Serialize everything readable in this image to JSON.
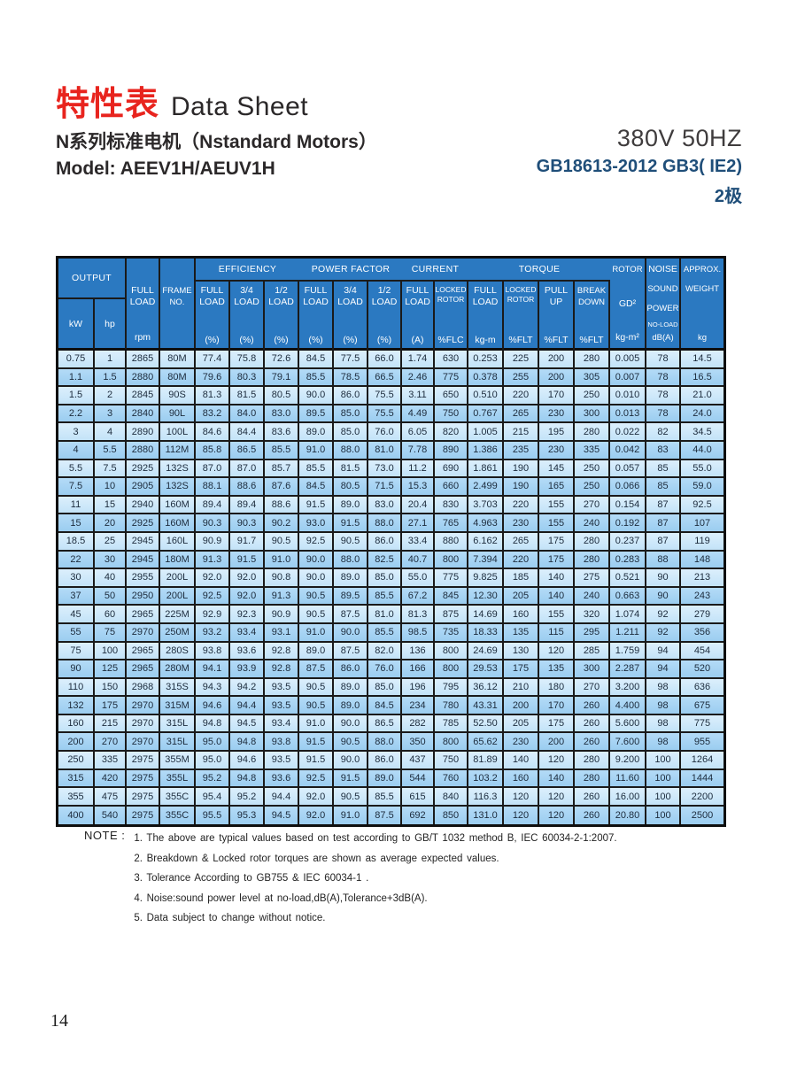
{
  "header": {
    "title_cn": "特性表",
    "title_en": "Data Sheet",
    "subtitle": "N系列标准电机（Nstandard Motors）",
    "model": "Model: AEEV1H/AEUV1H",
    "voltage": "380V 50HZ",
    "standard": "GB18613-2012 GB3( IE2)",
    "poles": "2极"
  },
  "colors": {
    "title_red": "#e8241e",
    "standard_navy": "#1f4e79",
    "table_header_blue": "#2b79c1",
    "row_light_blue": "#cfe8fa",
    "row_medium_blue": "#a8d4f3"
  },
  "table": {
    "head": {
      "output": "OUTPUT",
      "kw": "kW",
      "hp": "hp",
      "full": "FULL",
      "load": "LOAD",
      "rpm": "rpm",
      "frame1": "FRAME",
      "frame2": "NO.",
      "efficiency": "EFFICIENCY",
      "power_factor": "POWER FACTOR",
      "current": "CURRENT",
      "torque": "TORQUE",
      "three_quarters": "3/4",
      "one_half": "1/2",
      "pct": "(%)",
      "amps": "(A)",
      "locked": "LOCKED",
      "rotor": "ROTOR",
      "flc": "%FLC",
      "flt": "%FLT",
      "kgm": "kg-m",
      "pull": "PULL",
      "up": "UP",
      "brk": "BREAK",
      "down": "DOWN",
      "gd2": "GD²",
      "kgm2": "kg-m²",
      "noise": "NOISE",
      "sound": "SOUND",
      "power": "POWER",
      "noload": "NO-LOAD",
      "dba": "dB(A)",
      "approx": "APPROX.",
      "weight": "WEIGHT",
      "kg": "kg"
    },
    "rows": [
      [
        "0.75",
        "1",
        "2865",
        "80M",
        "77.4",
        "75.8",
        "72.6",
        "84.5",
        "77.5",
        "66.0",
        "1.74",
        "630",
        "0.253",
        "225",
        "200",
        "280",
        "0.005",
        "78",
        "14.5"
      ],
      [
        "1.1",
        "1.5",
        "2880",
        "80M",
        "79.6",
        "80.3",
        "79.1",
        "85.5",
        "78.5",
        "66.5",
        "2.46",
        "775",
        "0.378",
        "255",
        "200",
        "305",
        "0.007",
        "78",
        "16.5"
      ],
      [
        "1.5",
        "2",
        "2845",
        "90S",
        "81.3",
        "81.5",
        "80.5",
        "90.0",
        "86.0",
        "75.5",
        "3.11",
        "650",
        "0.510",
        "220",
        "170",
        "250",
        "0.010",
        "78",
        "21.0"
      ],
      [
        "2.2",
        "3",
        "2840",
        "90L",
        "83.2",
        "84.0",
        "83.0",
        "89.5",
        "85.0",
        "75.5",
        "4.49",
        "750",
        "0.767",
        "265",
        "230",
        "300",
        "0.013",
        "78",
        "24.0"
      ],
      [
        "3",
        "4",
        "2890",
        "100L",
        "84.6",
        "84.4",
        "83.6",
        "89.0",
        "85.0",
        "76.0",
        "6.05",
        "820",
        "1.005",
        "215",
        "195",
        "280",
        "0.022",
        "82",
        "34.5"
      ],
      [
        "4",
        "5.5",
        "2880",
        "112M",
        "85.8",
        "86.5",
        "85.5",
        "91.0",
        "88.0",
        "81.0",
        "7.78",
        "890",
        "1.386",
        "235",
        "230",
        "335",
        "0.042",
        "83",
        "44.0"
      ],
      [
        "5.5",
        "7.5",
        "2925",
        "132S",
        "87.0",
        "87.0",
        "85.7",
        "85.5",
        "81.5",
        "73.0",
        "11.2",
        "690",
        "1.861",
        "190",
        "145",
        "250",
        "0.057",
        "85",
        "55.0"
      ],
      [
        "7.5",
        "10",
        "2905",
        "132S",
        "88.1",
        "88.6",
        "87.6",
        "84.5",
        "80.5",
        "71.5",
        "15.3",
        "660",
        "2.499",
        "190",
        "165",
        "250",
        "0.066",
        "85",
        "59.0"
      ],
      [
        "11",
        "15",
        "2940",
        "160M",
        "89.4",
        "89.4",
        "88.6",
        "91.5",
        "89.0",
        "83.0",
        "20.4",
        "830",
        "3.703",
        "220",
        "155",
        "270",
        "0.154",
        "87",
        "92.5"
      ],
      [
        "15",
        "20",
        "2925",
        "160M",
        "90.3",
        "90.3",
        "90.2",
        "93.0",
        "91.5",
        "88.0",
        "27.1",
        "765",
        "4.963",
        "230",
        "155",
        "240",
        "0.192",
        "87",
        "107"
      ],
      [
        "18.5",
        "25",
        "2945",
        "160L",
        "90.9",
        "91.7",
        "90.5",
        "92.5",
        "90.5",
        "86.0",
        "33.4",
        "880",
        "6.162",
        "265",
        "175",
        "280",
        "0.237",
        "87",
        "119"
      ],
      [
        "22",
        "30",
        "2945",
        "180M",
        "91.3",
        "91.5",
        "91.0",
        "90.0",
        "88.0",
        "82.5",
        "40.7",
        "800",
        "7.394",
        "220",
        "175",
        "280",
        "0.283",
        "88",
        "148"
      ],
      [
        "30",
        "40",
        "2955",
        "200L",
        "92.0",
        "92.0",
        "90.8",
        "90.0",
        "89.0",
        "85.0",
        "55.0",
        "775",
        "9.825",
        "185",
        "140",
        "275",
        "0.521",
        "90",
        "213"
      ],
      [
        "37",
        "50",
        "2950",
        "200L",
        "92.5",
        "92.0",
        "91.3",
        "90.5",
        "89.5",
        "85.5",
        "67.2",
        "845",
        "12.30",
        "205",
        "140",
        "240",
        "0.663",
        "90",
        "243"
      ],
      [
        "45",
        "60",
        "2965",
        "225M",
        "92.9",
        "92.3",
        "90.9",
        "90.5",
        "87.5",
        "81.0",
        "81.3",
        "875",
        "14.69",
        "160",
        "155",
        "320",
        "1.074",
        "92",
        "279"
      ],
      [
        "55",
        "75",
        "2970",
        "250M",
        "93.2",
        "93.4",
        "93.1",
        "91.0",
        "90.0",
        "85.5",
        "98.5",
        "735",
        "18.33",
        "135",
        "115",
        "295",
        "1.211",
        "92",
        "356"
      ],
      [
        "75",
        "100",
        "2965",
        "280S",
        "93.8",
        "93.6",
        "92.8",
        "89.0",
        "87.5",
        "82.0",
        "136",
        "800",
        "24.69",
        "130",
        "120",
        "285",
        "1.759",
        "94",
        "454"
      ],
      [
        "90",
        "125",
        "2965",
        "280M",
        "94.1",
        "93.9",
        "92.8",
        "87.5",
        "86.0",
        "76.0",
        "166",
        "800",
        "29.53",
        "175",
        "135",
        "300",
        "2.287",
        "94",
        "520"
      ],
      [
        "110",
        "150",
        "2968",
        "315S",
        "94.3",
        "94.2",
        "93.5",
        "90.5",
        "89.0",
        "85.0",
        "196",
        "795",
        "36.12",
        "210",
        "180",
        "270",
        "3.200",
        "98",
        "636"
      ],
      [
        "132",
        "175",
        "2970",
        "315M",
        "94.6",
        "94.4",
        "93.5",
        "90.5",
        "89.0",
        "84.5",
        "234",
        "780",
        "43.31",
        "200",
        "170",
        "260",
        "4.400",
        "98",
        "675"
      ],
      [
        "160",
        "215",
        "2970",
        "315L",
        "94.8",
        "94.5",
        "93.4",
        "91.0",
        "90.0",
        "86.5",
        "282",
        "785",
        "52.50",
        "205",
        "175",
        "260",
        "5.600",
        "98",
        "775"
      ],
      [
        "200",
        "270",
        "2970",
        "315L",
        "95.0",
        "94.8",
        "93.8",
        "91.5",
        "90.5",
        "88.0",
        "350",
        "800",
        "65.62",
        "230",
        "200",
        "260",
        "7.600",
        "98",
        "955"
      ],
      [
        "250",
        "335",
        "2975",
        "355M",
        "95.0",
        "94.6",
        "93.5",
        "91.5",
        "90.0",
        "86.0",
        "437",
        "750",
        "81.89",
        "140",
        "120",
        "280",
        "9.200",
        "100",
        "1264"
      ],
      [
        "315",
        "420",
        "2975",
        "355L",
        "95.2",
        "94.8",
        "93.6",
        "92.5",
        "91.5",
        "89.0",
        "544",
        "760",
        "103.2",
        "160",
        "140",
        "280",
        "11.60",
        "100",
        "1444"
      ],
      [
        "355",
        "475",
        "2975",
        "355C",
        "95.4",
        "95.2",
        "94.4",
        "92.0",
        "90.5",
        "85.5",
        "615",
        "840",
        "116.3",
        "120",
        "120",
        "260",
        "16.00",
        "100",
        "2200"
      ],
      [
        "400",
        "540",
        "2975",
        "355C",
        "95.5",
        "95.3",
        "94.5",
        "92.0",
        "91.0",
        "87.5",
        "692",
        "850",
        "131.0",
        "120",
        "120",
        "260",
        "20.80",
        "100",
        "2500"
      ]
    ]
  },
  "notes": {
    "label": "NOTE :",
    "items": [
      "1. The above are typical values based on test according to GB/T 1032 method B, IEC 60034-2-1:2007.",
      "2. Breakdown & Locked rotor torques are shown as average expected values.",
      "3. Tolerance According to GB755 & IEC 60034-1 .",
      "4. Noise:sound power level at no-load,dB(A),Tolerance+3dB(A).",
      "5. Data subject to change without notice."
    ]
  },
  "page_number": "14"
}
